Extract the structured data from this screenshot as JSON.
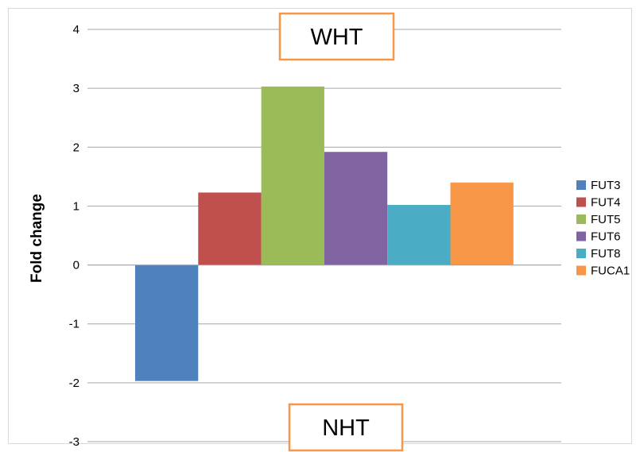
{
  "chart_data": {
    "type": "bar",
    "title": "",
    "xlabel": "",
    "ylabel": "Fold change",
    "ylim": [
      -3,
      4
    ],
    "yticks": [
      -3,
      -2,
      -1,
      0,
      1,
      2,
      3,
      4
    ],
    "grid": true,
    "legend_position": "right",
    "series": [
      {
        "name": "FUT3",
        "value": -1.97,
        "color": "#4f81bd"
      },
      {
        "name": "FUT4",
        "value": 1.23,
        "color": "#c0504d"
      },
      {
        "name": "FUT5",
        "value": 3.03,
        "color": "#9bbb59"
      },
      {
        "name": "FUT6",
        "value": 1.92,
        "color": "#8064a2"
      },
      {
        "name": "FUT8",
        "value": 1.02,
        "color": "#4bacc6"
      },
      {
        "name": "FUCA1",
        "value": 1.4,
        "color": "#f79646"
      }
    ],
    "annotations": [
      {
        "text": "WHT",
        "position": "top"
      },
      {
        "text": "NHT",
        "position": "bottom"
      }
    ]
  }
}
